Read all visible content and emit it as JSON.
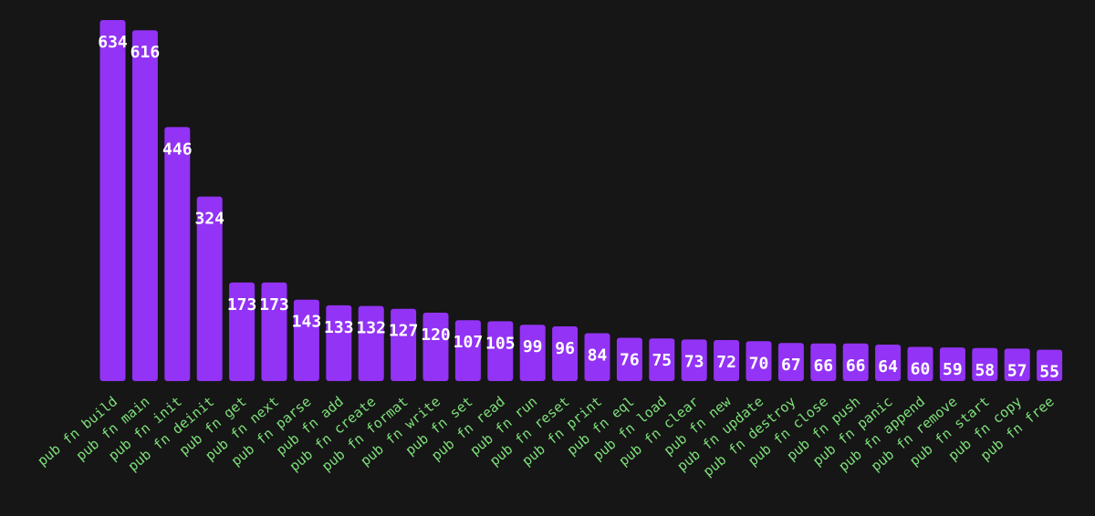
{
  "colors": {
    "background": "#161616",
    "bar": "#9333f5",
    "tick_label": "#7ee07a",
    "value_label": "#ffffff"
  },
  "chart_data": {
    "type": "bar",
    "title": "",
    "xlabel": "",
    "ylabel": "",
    "grid": false,
    "legend": "none",
    "ylim": [
      0,
      640
    ],
    "categories": [
      "pub fn build",
      "pub fn main",
      "pub fn init",
      "pub fn deinit",
      "pub fn get",
      "pub fn next",
      "pub fn parse",
      "pub fn add",
      "pub fn create",
      "pub fn format",
      "pub fn write",
      "pub fn set",
      "pub fn read",
      "pub fn run",
      "pub fn reset",
      "pub fn print",
      "pub fn eql",
      "pub fn load",
      "pub fn clear",
      "pub fn new",
      "pub fn update",
      "pub fn destroy",
      "pub fn close",
      "pub fn push",
      "pub fn panic",
      "pub fn append",
      "pub fn remove",
      "pub fn start",
      "pub fn copy",
      "pub fn free"
    ],
    "values": [
      634,
      616,
      446,
      324,
      173,
      173,
      143,
      133,
      132,
      127,
      120,
      107,
      105,
      99,
      96,
      84,
      76,
      75,
      73,
      72,
      70,
      67,
      66,
      66,
      64,
      60,
      59,
      58,
      57,
      55
    ]
  }
}
